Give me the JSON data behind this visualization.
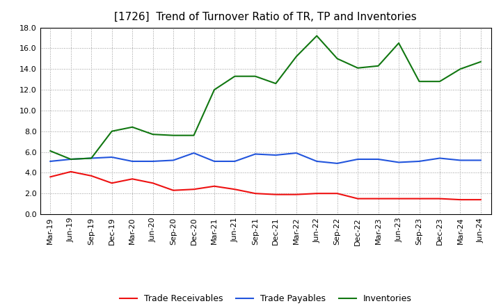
{
  "title": "[1726]  Trend of Turnover Ratio of TR, TP and Inventories",
  "x_labels": [
    "Mar-19",
    "Jun-19",
    "Sep-19",
    "Dec-19",
    "Mar-20",
    "Jun-20",
    "Sep-20",
    "Dec-20",
    "Mar-21",
    "Jun-21",
    "Sep-21",
    "Dec-21",
    "Mar-22",
    "Jun-22",
    "Sep-22",
    "Dec-22",
    "Mar-23",
    "Jun-23",
    "Sep-23",
    "Dec-23",
    "Mar-24",
    "Jun-24"
  ],
  "trade_receivables": [
    3.6,
    4.1,
    3.7,
    3.0,
    3.4,
    3.0,
    2.3,
    2.4,
    2.7,
    2.4,
    2.0,
    1.9,
    1.9,
    2.0,
    2.0,
    1.5,
    1.5,
    1.5,
    1.5,
    1.5,
    1.4,
    1.4
  ],
  "trade_payables": [
    5.1,
    5.3,
    5.4,
    5.5,
    5.1,
    5.1,
    5.2,
    5.9,
    5.1,
    5.1,
    5.8,
    5.7,
    5.9,
    5.1,
    4.9,
    5.3,
    5.3,
    5.0,
    5.1,
    5.4,
    5.2,
    5.2
  ],
  "inventories": [
    6.1,
    5.3,
    5.4,
    8.0,
    8.4,
    7.7,
    7.6,
    7.6,
    12.0,
    13.3,
    13.3,
    12.6,
    15.2,
    17.2,
    15.0,
    14.1,
    14.3,
    16.5,
    12.8,
    12.8,
    14.0,
    14.7
  ],
  "ylim": [
    0.0,
    18.0
  ],
  "yticks": [
    0.0,
    2.0,
    4.0,
    6.0,
    8.0,
    10.0,
    12.0,
    14.0,
    16.0,
    18.0
  ],
  "color_tr": "#ee1111",
  "color_tp": "#2255dd",
  "color_inv": "#117711",
  "legend_labels": [
    "Trade Receivables",
    "Trade Payables",
    "Inventories"
  ],
  "background_color": "#ffffff",
  "grid_color": "#999999",
  "title_fontsize": 11,
  "axis_fontsize": 8,
  "legend_fontsize": 9
}
